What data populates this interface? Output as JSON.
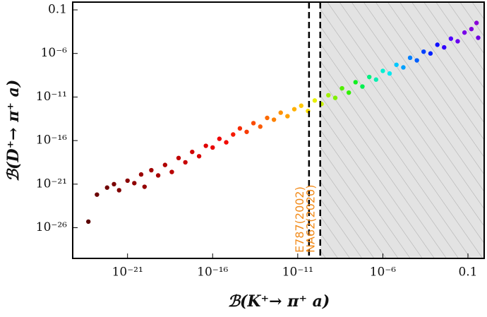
{
  "chart_data": {
    "type": "scatter",
    "x_label": "ℬ(K⁺→ π⁺ a)",
    "y_label": "ℬ(D⁺→ π⁺ a)",
    "log_x": true,
    "log_y": true,
    "xlim": [
      6e-25,
      0.9
    ],
    "ylim": [
      3e-30,
      0.78
    ],
    "xticks": [
      {
        "value": 1e-21,
        "label": "10⁻²¹"
      },
      {
        "value": 1e-16,
        "label": "10⁻¹⁶"
      },
      {
        "value": 1e-11,
        "label": "10⁻¹¹"
      },
      {
        "value": 1e-06,
        "label": "10⁻⁶"
      },
      0.1
    ],
    "yticks": [
      0.1,
      {
        "value": 1e-06,
        "label": "10⁻⁶"
      },
      {
        "value": 1e-11,
        "label": "10⁻¹¹"
      },
      {
        "value": 1e-16,
        "label": "10⁻¹⁶"
      },
      {
        "value": 1e-21,
        "label": "10⁻²¹"
      },
      {
        "value": 1e-26,
        "label": "10⁻²⁶"
      }
    ],
    "limits": [
      {
        "label": "E787(2002)",
        "value": 4.6e-11,
        "color": "#f28c1c"
      },
      {
        "label": "NA62(2020)",
        "value": 2.1e-10,
        "color": "#f28c1c"
      }
    ],
    "x": [
      5e-24,
      1.6e-23,
      6.3e-23,
      1.6e-22,
      3.2e-22,
      1e-21,
      2.5e-21,
      6.3e-21,
      1e-20,
      2.5e-20,
      6.3e-20,
      1.6e-19,
      4e-19,
      1e-18,
      2.5e-18,
      6.3e-18,
      1.6e-17,
      4e-17,
      1e-16,
      2.5e-16,
      6.3e-16,
      1.6e-15,
      4e-15,
      1e-14,
      2.5e-14,
      6.3e-14,
      1.6e-13,
      4e-13,
      1e-12,
      2.5e-12,
      6.3e-12,
      1.6e-11,
      4e-11,
      1e-10,
      2.5e-10,
      6.3e-10,
      1.6e-09,
      4e-09,
      1e-08,
      2.5e-08,
      6.3e-08,
      1.6e-07,
      4e-07,
      1e-06,
      2.5e-06,
      6.3e-06,
      1.6e-05,
      4e-05,
      0.0001,
      0.00025,
      0.00063,
      0.0016,
      0.004,
      0.01,
      0.025,
      0.063,
      0.16,
      0.32,
      0.4
    ],
    "y": [
      5e-26,
      6.3e-23,
      4e-22,
      1e-21,
      2e-22,
      2.5e-21,
      1.3e-21,
      1.3e-20,
      5e-22,
      4e-20,
      1e-20,
      1.6e-19,
      2.5e-20,
      1e-18,
      3.2e-19,
      5e-18,
      1.6e-18,
      2.5e-17,
      1.6e-17,
      1.6e-16,
      6.3e-17,
      5e-16,
      2.5e-15,
      1e-15,
      1e-14,
      4e-15,
      4e-14,
      2.5e-14,
      1.6e-13,
      6.3e-14,
      4e-13,
      1e-12,
      2.5e-13,
      4e-12,
      1.6e-12,
      1.6e-11,
      8e-12,
      1e-10,
      3.2e-11,
      5e-10,
      1.6e-10,
      2e-09,
      1e-09,
      1e-08,
      5e-09,
      5e-08,
      2.5e-08,
      3.2e-07,
      1.6e-07,
      1.6e-06,
      1e-06,
      1e-05,
      5e-06,
      5e-05,
      2.5e-05,
      0.00025,
      0.00063,
      0.0032,
      6.3e-05
    ],
    "colors": [
      "#5a0000",
      "#6b0000",
      "#700000",
      "#7a0000",
      "#800000",
      "#8a0000",
      "#8f0000",
      "#990000",
      "#950000",
      "#a00000",
      "#a80000",
      "#b00000",
      "#b80000",
      "#c00000",
      "#c80000",
      "#d00000",
      "#d80000",
      "#e00000",
      "#e80000",
      "#ee0000",
      "#f20a00",
      "#f51a00",
      "#f52a00",
      "#f83a00",
      "#fa4a00",
      "#fb5a00",
      "#fc6a00",
      "#fd8000",
      "#fe9000",
      "#ffa000",
      "#ffb000",
      "#ffc800",
      "#ffe000",
      "#e8f000",
      "#c8f000",
      "#a0f000",
      "#80f000",
      "#50f000",
      "#30f000",
      "#10f020",
      "#00f050",
      "#00f080",
      "#00f0b0",
      "#00f0d0",
      "#00e8f0",
      "#00c8ff",
      "#00a0ff",
      "#0080ff",
      "#0060ff",
      "#0040ff",
      "#0020ff",
      "#1010ff",
      "#3000ff",
      "#5000ff",
      "#6800f0",
      "#7800e8",
      "#8000e0",
      "#8800d8",
      "#7000e0"
    ]
  }
}
